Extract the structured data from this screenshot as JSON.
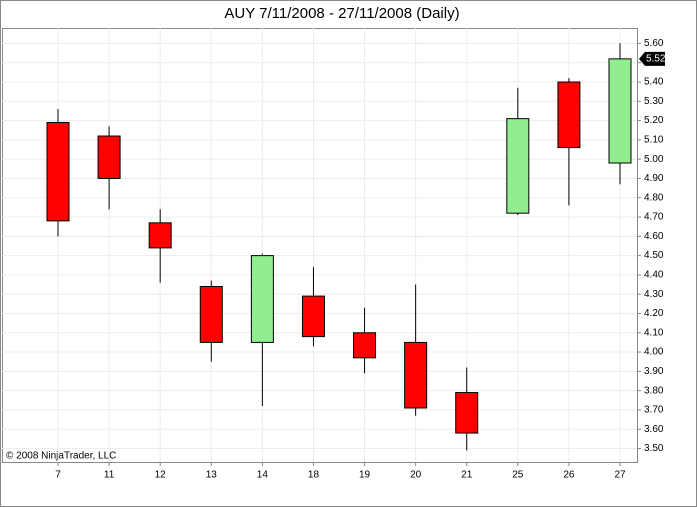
{
  "chart_data": {
    "type": "candlestick",
    "title": "AUY  7/11/2008 - 27/11/2008 (Daily)",
    "annotation": "© 2008 NinjaTrader, LLC",
    "categories": [
      "7",
      "11",
      "12",
      "13",
      "14",
      "18",
      "19",
      "20",
      "21",
      "25",
      "26",
      "27"
    ],
    "series": [
      {
        "open": [
          5.19,
          5.12,
          4.67,
          4.34,
          4.05,
          4.29,
          4.1,
          4.05,
          3.79,
          4.72,
          5.4,
          4.98
        ],
        "high": [
          5.26,
          5.17,
          4.74,
          4.37,
          4.51,
          4.44,
          4.23,
          4.35,
          3.92,
          5.37,
          5.42,
          5.6
        ],
        "low": [
          4.6,
          4.74,
          4.36,
          3.95,
          3.72,
          4.03,
          3.89,
          3.67,
          3.49,
          4.71,
          4.76,
          4.87
        ],
        "close": [
          4.68,
          4.9,
          4.54,
          4.05,
          4.5,
          4.08,
          3.97,
          3.71,
          3.58,
          5.21,
          5.06,
          5.52
        ]
      }
    ],
    "up_color": "#90ee90",
    "down_color": "#ff0000",
    "ylim": [
      3.43,
      5.68
    ],
    "yticks": [
      {
        "value": 3.5,
        "label": "3.50"
      },
      {
        "value": 3.6,
        "label": "3.60"
      },
      {
        "value": 3.7,
        "label": "3.70"
      },
      {
        "value": 3.8,
        "label": "3.80"
      },
      {
        "value": 3.9,
        "label": "3.90"
      },
      {
        "value": 4.0,
        "label": "4.00"
      },
      {
        "value": 4.1,
        "label": "4.10"
      },
      {
        "value": 4.2,
        "label": "4.20"
      },
      {
        "value": 4.3,
        "label": "4.30"
      },
      {
        "value": 4.4,
        "label": "4.40"
      },
      {
        "value": 4.5,
        "label": "4.50"
      },
      {
        "value": 4.6,
        "label": "4.60"
      },
      {
        "value": 4.7,
        "label": "4.70"
      },
      {
        "value": 4.8,
        "label": "4.80"
      },
      {
        "value": 4.9,
        "label": "4.90"
      },
      {
        "value": 5.0,
        "label": "5.00"
      },
      {
        "value": 5.1,
        "label": "5.10"
      },
      {
        "value": 5.2,
        "label": "5.20"
      },
      {
        "value": 5.3,
        "label": "5.30"
      },
      {
        "value": 5.4,
        "label": "5.40"
      },
      {
        "value": 5.5,
        "label": "5.50"
      },
      {
        "value": 5.6,
        "label": "5.60"
      }
    ],
    "grid": true
  }
}
